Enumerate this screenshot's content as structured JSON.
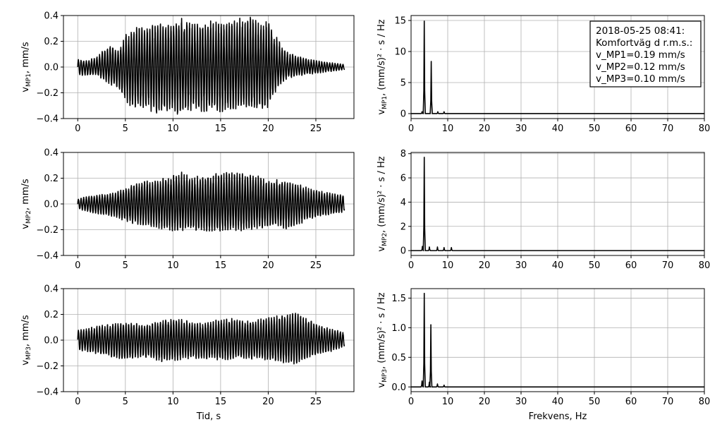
{
  "chart_data": [
    {
      "type": "line",
      "kind": "time",
      "row": 0,
      "xlabel": "",
      "ylabel": "v_MP1, mm/s",
      "ylabel_base": "v",
      "ylabel_sub": "MP1",
      "ylabel_rest": ",  mm/s",
      "xlim": [
        -1.5,
        29
      ],
      "ylim": [
        -0.4,
        0.4
      ],
      "xticks": [
        0,
        5,
        10,
        15,
        20,
        25
      ],
      "yticks": [
        -0.4,
        -0.2,
        0.0,
        0.2,
        0.4
      ],
      "xtick_labels": [
        "0",
        "5",
        "10",
        "15",
        "20",
        "25"
      ],
      "ytick_labels": [
        "−0.4",
        "−0.2",
        "0.0",
        "0.2",
        "0.4"
      ],
      "grid": true,
      "x": [
        0,
        1,
        2,
        2.5,
        3,
        3.5,
        4,
        4.5,
        5,
        5.5,
        6,
        6.5,
        7,
        7.5,
        8,
        8.5,
        9,
        9.5,
        10,
        10.5,
        11,
        11.5,
        12,
        12.5,
        13,
        13.5,
        14,
        14.5,
        15,
        15.5,
        16,
        16.5,
        17,
        17.5,
        18,
        18.5,
        19,
        19.5,
        20,
        20.5,
        21,
        21.5,
        22,
        23,
        24,
        25,
        26,
        27,
        28
      ],
      "envelope_pos": [
        0.06,
        0.05,
        0.08,
        0.12,
        0.14,
        0.18,
        0.13,
        0.16,
        0.25,
        0.27,
        0.3,
        0.32,
        0.3,
        0.33,
        0.32,
        0.34,
        0.33,
        0.35,
        0.36,
        0.37,
        0.38,
        0.36,
        0.35,
        0.33,
        0.35,
        0.34,
        0.36,
        0.35,
        0.33,
        0.35,
        0.34,
        0.36,
        0.38,
        0.36,
        0.39,
        0.38,
        0.35,
        0.33,
        0.37,
        0.27,
        0.22,
        0.15,
        0.12,
        0.09,
        0.07,
        0.05,
        0.04,
        0.03,
        0.02
      ],
      "envelope_neg": [
        -0.06,
        -0.07,
        -0.06,
        -0.09,
        -0.12,
        -0.14,
        -0.15,
        -0.2,
        -0.26,
        -0.3,
        -0.32,
        -0.33,
        -0.31,
        -0.34,
        -0.35,
        -0.37,
        -0.36,
        -0.35,
        -0.34,
        -0.38,
        -0.35,
        -0.36,
        -0.33,
        -0.34,
        -0.35,
        -0.36,
        -0.34,
        -0.33,
        -0.35,
        -0.34,
        -0.36,
        -0.35,
        -0.33,
        -0.34,
        -0.35,
        -0.33,
        -0.34,
        -0.36,
        -0.32,
        -0.23,
        -0.16,
        -0.12,
        -0.09,
        -0.07,
        -0.06,
        -0.05,
        -0.04,
        -0.03,
        -0.02
      ],
      "dominant_hz": 3.6
    },
    {
      "type": "line",
      "kind": "spectrum",
      "row": 0,
      "xlabel": "",
      "ylabel": "v_MP1, (mm/s)^2 · s / Hz",
      "ylabel_base": "v",
      "ylabel_sub": "MP1",
      "ylabel_rest": ",  (mm/s)² · s / Hz",
      "xlim": [
        0,
        80
      ],
      "ylim": [
        -0.8,
        15.8
      ],
      "xticks": [
        0,
        10,
        20,
        30,
        40,
        50,
        60,
        70,
        80
      ],
      "yticks": [
        0,
        5,
        10,
        15
      ],
      "xtick_labels": [
        "0",
        "10",
        "20",
        "30",
        "40",
        "50",
        "60",
        "70",
        "80"
      ],
      "ytick_labels": [
        "0",
        "5",
        "10",
        "15"
      ],
      "grid": true,
      "peaks": [
        {
          "x": 3.6,
          "y": 14.9
        },
        {
          "x": 5.5,
          "y": 8.4
        },
        {
          "x": 3.0,
          "y": 0.3
        },
        {
          "x": 7.3,
          "y": 0.3
        },
        {
          "x": 9.0,
          "y": 0.3
        }
      ],
      "annotation": [
        "2018-05-25 08:41:",
        "Komfortväg d r.m.s.:",
        "v_MP1=0.19 mm/s",
        "v_MP2=0.12 mm/s",
        "v_MP3=0.10 mm/s"
      ]
    },
    {
      "type": "line",
      "kind": "time",
      "row": 1,
      "xlabel": "",
      "ylabel": "v_MP2, mm/s",
      "ylabel_base": "v",
      "ylabel_sub": "MP2",
      "ylabel_rest": ",  mm/s",
      "xlim": [
        -1.5,
        29
      ],
      "ylim": [
        -0.4,
        0.4
      ],
      "xticks": [
        0,
        5,
        10,
        15,
        20,
        25
      ],
      "yticks": [
        -0.4,
        -0.2,
        0.0,
        0.2,
        0.4
      ],
      "xtick_labels": [
        "0",
        "5",
        "10",
        "15",
        "20",
        "25"
      ],
      "ytick_labels": [
        "−0.4",
        "−0.2",
        "0.0",
        "0.2",
        "0.4"
      ],
      "grid": true,
      "x": [
        0,
        1,
        2,
        3,
        4,
        5,
        6,
        7,
        8,
        9,
        10,
        11,
        12,
        13,
        14,
        15,
        16,
        17,
        18,
        19,
        20,
        21,
        22,
        23,
        24,
        25,
        26,
        27,
        28
      ],
      "envelope_pos": [
        0.04,
        0.06,
        0.07,
        0.08,
        0.09,
        0.13,
        0.16,
        0.18,
        0.18,
        0.2,
        0.22,
        0.25,
        0.21,
        0.22,
        0.23,
        0.24,
        0.25,
        0.24,
        0.23,
        0.22,
        0.18,
        0.19,
        0.18,
        0.16,
        0.13,
        0.11,
        0.09,
        0.08,
        0.07
      ],
      "envelope_neg": [
        -0.04,
        -0.06,
        -0.08,
        -0.09,
        -0.1,
        -0.14,
        -0.16,
        -0.17,
        -0.18,
        -0.2,
        -0.21,
        -0.22,
        -0.2,
        -0.21,
        -0.21,
        -0.22,
        -0.2,
        -0.21,
        -0.2,
        -0.19,
        -0.18,
        -0.17,
        -0.2,
        -0.17,
        -0.13,
        -0.11,
        -0.09,
        -0.08,
        -0.06
      ],
      "dominant_hz": 3.6
    },
    {
      "type": "line",
      "kind": "spectrum",
      "row": 1,
      "xlabel": "",
      "ylabel": "v_MP2, (mm/s)^2 · s / Hz",
      "ylabel_base": "v",
      "ylabel_sub": "MP2",
      "ylabel_rest": ",  (mm/s)² · s / Hz",
      "xlim": [
        0,
        80
      ],
      "ylim": [
        -0.4,
        8.1
      ],
      "xticks": [
        0,
        10,
        20,
        30,
        40,
        50,
        60,
        70,
        80
      ],
      "yticks": [
        0,
        2,
        4,
        6,
        8
      ],
      "xtick_labels": [
        "0",
        "10",
        "20",
        "30",
        "40",
        "50",
        "60",
        "70",
        "80"
      ],
      "ytick_labels": [
        "0",
        "2",
        "4",
        "6",
        "8"
      ],
      "grid": true,
      "peaks": [
        {
          "x": 3.6,
          "y": 7.7
        },
        {
          "x": 3.1,
          "y": 0.35
        },
        {
          "x": 5.0,
          "y": 0.3
        },
        {
          "x": 7.2,
          "y": 0.3
        },
        {
          "x": 9.0,
          "y": 0.25
        },
        {
          "x": 11.0,
          "y": 0.25
        }
      ]
    },
    {
      "type": "line",
      "kind": "time",
      "row": 2,
      "xlabel": "Tid, s",
      "ylabel": "v_MP3, mm/s",
      "ylabel_base": "v",
      "ylabel_sub": "MP3",
      "ylabel_rest": ",  mm/s",
      "xlim": [
        -1.5,
        29
      ],
      "ylim": [
        -0.4,
        0.4
      ],
      "xticks": [
        0,
        5,
        10,
        15,
        20,
        25
      ],
      "yticks": [
        -0.4,
        -0.2,
        0.0,
        0.2,
        0.4
      ],
      "xtick_labels": [
        "0",
        "5",
        "10",
        "15",
        "20",
        "25"
      ],
      "ytick_labels": [
        "−0.4",
        "−0.2",
        "0.0",
        "0.2",
        "0.4"
      ],
      "grid": true,
      "x": [
        0,
        1,
        2,
        3,
        4,
        5,
        6,
        7,
        8,
        9,
        10,
        11,
        12,
        13,
        14,
        15,
        16,
        17,
        18,
        19,
        20,
        21,
        22,
        23,
        24,
        25,
        26,
        27,
        28
      ],
      "envelope_pos": [
        0.08,
        0.09,
        0.11,
        0.12,
        0.13,
        0.14,
        0.13,
        0.12,
        0.14,
        0.16,
        0.17,
        0.16,
        0.14,
        0.13,
        0.15,
        0.16,
        0.17,
        0.16,
        0.15,
        0.16,
        0.18,
        0.19,
        0.2,
        0.21,
        0.17,
        0.13,
        0.1,
        0.08,
        0.06
      ],
      "envelope_neg": [
        -0.08,
        -0.09,
        -0.11,
        -0.12,
        -0.14,
        -0.16,
        -0.14,
        -0.13,
        -0.15,
        -0.17,
        -0.16,
        -0.15,
        -0.14,
        -0.15,
        -0.14,
        -0.16,
        -0.15,
        -0.14,
        -0.15,
        -0.14,
        -0.16,
        -0.17,
        -0.18,
        -0.19,
        -0.15,
        -0.12,
        -0.1,
        -0.08,
        -0.05
      ],
      "dominant_hz": 3.6
    },
    {
      "type": "line",
      "kind": "spectrum",
      "row": 2,
      "xlabel": "Frekvens, Hz",
      "ylabel": "v_MP3, (mm/s)^2 · s / Hz",
      "ylabel_base": "v",
      "ylabel_sub": "MP3",
      "ylabel_rest": ",  (mm/s)² · s / Hz",
      "xlim": [
        0,
        80
      ],
      "ylim": [
        -0.08,
        1.66
      ],
      "xticks": [
        0,
        10,
        20,
        30,
        40,
        50,
        60,
        70,
        80
      ],
      "yticks": [
        0.0,
        0.5,
        1.0,
        1.5
      ],
      "xtick_labels": [
        "0",
        "10",
        "20",
        "30",
        "40",
        "50",
        "60",
        "70",
        "80"
      ],
      "ytick_labels": [
        "0.0",
        "0.5",
        "1.0",
        "1.5"
      ],
      "grid": true,
      "peaks": [
        {
          "x": 3.6,
          "y": 1.58
        },
        {
          "x": 5.4,
          "y": 1.05
        },
        {
          "x": 3.0,
          "y": 0.1
        },
        {
          "x": 5.0,
          "y": 0.08
        },
        {
          "x": 7.2,
          "y": 0.05
        },
        {
          "x": 9.0,
          "y": 0.03
        }
      ]
    }
  ]
}
